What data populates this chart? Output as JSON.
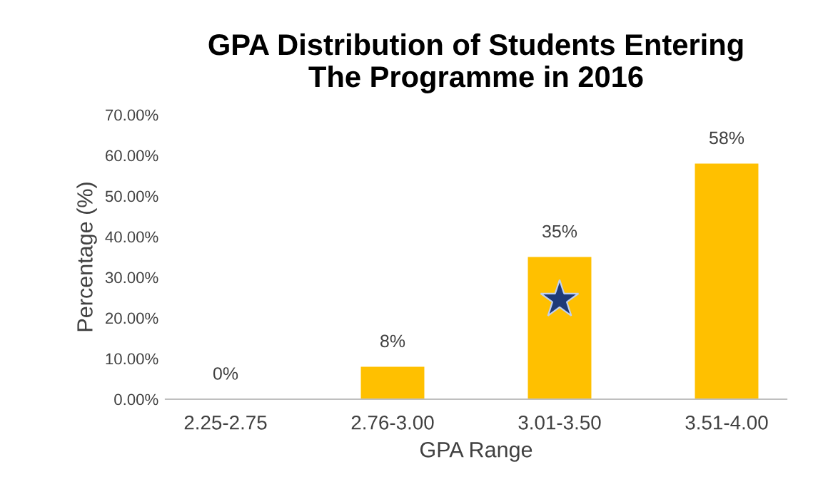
{
  "chart_data": {
    "type": "bar",
    "title": "GPA Distribution of Students Entering\nThe Programme in 2016",
    "xlabel": "GPA Range",
    "ylabel": "Percentage (%)",
    "categories": [
      "2.25-2.75",
      "2.76-3.00",
      "3.01-3.50",
      "3.51-4.00"
    ],
    "values": [
      0,
      8,
      35,
      58
    ],
    "value_labels": [
      "0%",
      "8%",
      "35%",
      "58%"
    ],
    "color": "#ffc000",
    "ylim": [
      0,
      70
    ],
    "yticks": [
      {
        "value": 0,
        "label": "0.00%"
      },
      {
        "value": 10,
        "label": "10.00%"
      },
      {
        "value": 20,
        "label": "20.00%"
      },
      {
        "value": 30,
        "label": "30.00%"
      },
      {
        "value": 40,
        "label": "40.00%"
      },
      {
        "value": 50,
        "label": "50.00%"
      },
      {
        "value": 60,
        "label": "60.00%"
      },
      {
        "value": 70,
        "label": "70.00%"
      }
    ],
    "grid": false,
    "legend": false
  }
}
